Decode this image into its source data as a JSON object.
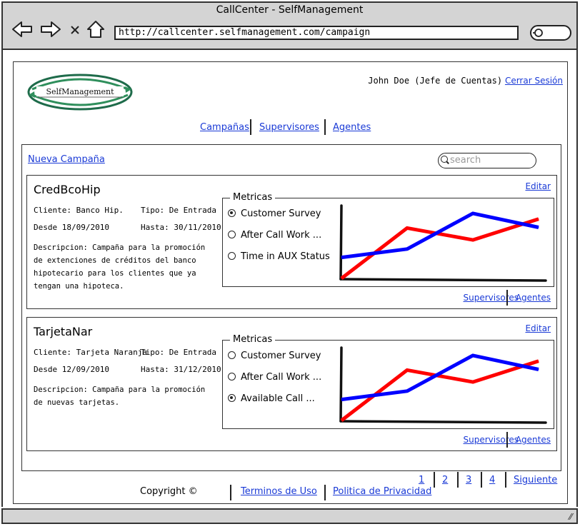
{
  "window": {
    "title": "CallCenter - SelfManagement"
  },
  "addressbar": {
    "url": "http://callcenter.selfmanagement.com/campaign"
  },
  "header": {
    "logo_text": "SelfManagement",
    "user_label": "John Doe (Jefe de Cuentas)",
    "logout_label": "Cerrar Sesión"
  },
  "nav": {
    "items": [
      "Campañas",
      "Supervisores",
      "Agentes"
    ]
  },
  "toolbar": {
    "new_campaign_label": "Nueva Campaña",
    "search_placeholder": "search"
  },
  "campaigns": [
    {
      "title": "CredBcoHip",
      "edit_label": "Editar",
      "client": "Cliente: Banco Hip.",
      "type": "Tipo: De Entrada",
      "from": "Desde 18/09/2010",
      "to": "Hasta: 30/11/2010",
      "description": "Descripcion: Campaña para la promoción de extenciones de créditos del banco hipotecario para los clientes que ya tengan una hipoteca.",
      "metrics_title": "Metricas",
      "metrics": [
        {
          "label": "Customer Survey",
          "selected": true
        },
        {
          "label": "After Call Work ...",
          "selected": false
        },
        {
          "label": "Time in AUX Status",
          "selected": false
        }
      ],
      "links": [
        "Supervisores",
        "Agentes"
      ]
    },
    {
      "title": "TarjetaNar",
      "edit_label": "Editar",
      "client": "Cliente: Tarjeta Naranja",
      "type": "Tipo: De Entrada",
      "from": "Desde 12/09/2010",
      "to": "Hasta: 31/12/2010",
      "description": "Descripcion: Campaña para la promoción de nuevas tarjetas.",
      "metrics_title": "Metricas",
      "metrics": [
        {
          "label": "Customer Survey",
          "selected": false
        },
        {
          "label": "After Call Work ...",
          "selected": false
        },
        {
          "label": "Available Call ...",
          "selected": true
        }
      ],
      "links": [
        "Supervisores",
        "Agentes"
      ]
    }
  ],
  "pager": {
    "pages": [
      "1",
      "2",
      "3",
      "4"
    ],
    "next_label": "Siguiente"
  },
  "footer": {
    "copyright": "Copyright ©",
    "terms": "Terminos de Uso",
    "privacy": "Politica de Privacidad"
  },
  "colors": {
    "series_red": "#ff0000",
    "series_blue": "#0000ff",
    "link": "#1a3ad6",
    "chrome": "#d4d4d4"
  },
  "chart_data": [
    {
      "type": "line",
      "series": [
        {
          "color": "#ff0000",
          "values": [
            0,
            0.72,
            0.55,
            0.85
          ]
        },
        {
          "color": "#0000ff",
          "values": [
            0.3,
            0.42,
            0.93,
            0.73
          ]
        }
      ],
      "x": [
        0,
        1,
        2,
        3
      ],
      "grid": false
    },
    {
      "type": "line",
      "series": [
        {
          "color": "#ff0000",
          "values": [
            0,
            0.72,
            0.55,
            0.85
          ]
        },
        {
          "color": "#0000ff",
          "values": [
            0.3,
            0.42,
            0.93,
            0.73
          ]
        }
      ],
      "x": [
        0,
        1,
        2,
        3
      ],
      "grid": false
    }
  ]
}
